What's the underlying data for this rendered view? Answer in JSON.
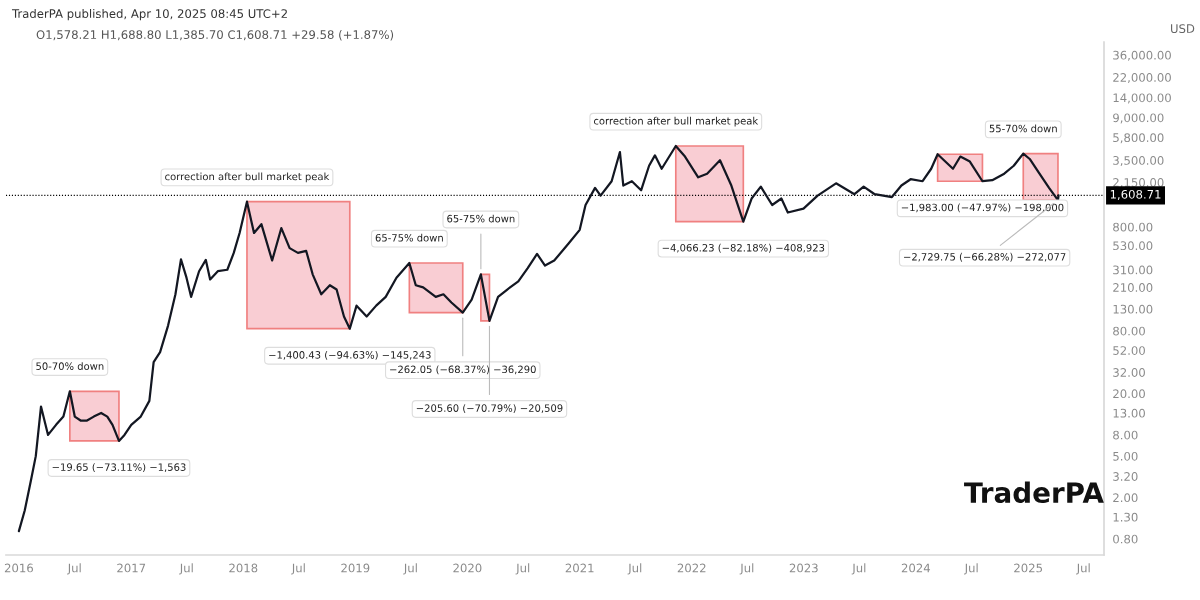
{
  "chart_data": {
    "type": "line",
    "annotations": [
      "TraderPA published, Apr 10, 2025 08:45 UTC+2",
      "O1,578.21 H1,688.80 L1,385.70 C1,608.71 +29.58 (+1.87%)",
      "USD",
      "TraderPA",
      {
        "text": "50-70% down",
        "x": "2016-06-15",
        "y": 21
      },
      {
        "text": "−19.65 (−73.11%) −1,563",
        "x": "2016-11-22",
        "y": 7
      },
      {
        "text": "correction after bull market peak",
        "x": "2018-01-13",
        "y": 1400
      },
      {
        "text": "−1,400.43 (−94.63%) −145,243",
        "x": "2018-12-14",
        "y": 84
      },
      {
        "text": "65-75% down",
        "x": "2019-06-26",
        "y": 360
      },
      {
        "text": "−262.05 (−68.37%) −36,290",
        "x": "2019-12-17",
        "y": 120
      },
      {
        "text": "65-75% down",
        "x": "2020-02-14",
        "y": 280
      },
      {
        "text": "−205.60 (−70.79%) −20,509",
        "x": "2020-03-13",
        "y": 100
      },
      {
        "text": "correction after bull market peak",
        "x": "2021-11-10",
        "y": 4800
      },
      {
        "text": "−4,066.23 (−82.18%) −408,923",
        "x": "2022-06-18",
        "y": 900
      },
      {
        "text": "−1,983.00 (−47.97%) −198,000",
        "x": "2024-08-05",
        "y": 2200
      },
      {
        "text": "55-70% down",
        "x": "2024-12-16",
        "y": 4050
      },
      {
        "text": "−2,729.75 (−66.28%) −272,077",
        "x": "2025-04-08",
        "y": 1450
      }
    ],
    "x": [
      "2016-01-01",
      "2016-01-20",
      "2016-02-10",
      "2016-02-25",
      "2016-03-13",
      "2016-04-05",
      "2016-05-01",
      "2016-05-25",
      "2016-06-15",
      "2016-07-01",
      "2016-07-20",
      "2016-08-10",
      "2016-09-01",
      "2016-09-25",
      "2016-10-15",
      "2016-11-01",
      "2016-11-22",
      "2016-12-10",
      "2017-01-01",
      "2017-02-01",
      "2017-03-01",
      "2017-03-15",
      "2017-04-05",
      "2017-05-01",
      "2017-05-25",
      "2017-06-12",
      "2017-06-30",
      "2017-07-15",
      "2017-08-10",
      "2017-09-01",
      "2017-09-15",
      "2017-10-10",
      "2017-11-10",
      "2017-12-01",
      "2017-12-20",
      "2018-01-13",
      "2018-02-05",
      "2018-03-01",
      "2018-04-05",
      "2018-05-05",
      "2018-06-01",
      "2018-06-28",
      "2018-07-25",
      "2018-08-15",
      "2018-09-12",
      "2018-10-10",
      "2018-11-01",
      "2018-11-25",
      "2018-12-14",
      "2019-01-05",
      "2019-02-07",
      "2019-03-10",
      "2019-04-10",
      "2019-05-15",
      "2019-06-26",
      "2019-07-17",
      "2019-08-10",
      "2019-09-20",
      "2019-10-15",
      "2019-11-10",
      "2019-12-17",
      "2020-01-15",
      "2020-02-14",
      "2020-03-13",
      "2020-04-10",
      "2020-05-10",
      "2020-06-15",
      "2020-07-15",
      "2020-08-15",
      "2020-09-10",
      "2020-10-10",
      "2020-11-25",
      "2021-01-01",
      "2021-01-20",
      "2021-02-20",
      "2021-03-10",
      "2021-04-15",
      "2021-05-12",
      "2021-05-23",
      "2021-06-20",
      "2021-07-20",
      "2021-08-15",
      "2021-09-03",
      "2021-09-25",
      "2021-11-10",
      "2021-12-10",
      "2022-01-22",
      "2022-02-20",
      "2022-04-03",
      "2022-05-10",
      "2022-06-18",
      "2022-07-15",
      "2022-08-14",
      "2022-09-20",
      "2022-10-20",
      "2022-11-10",
      "2022-12-31",
      "2023-02-15",
      "2023-04-16",
      "2023-06-15",
      "2023-07-15",
      "2023-08-20",
      "2023-10-15",
      "2023-11-15",
      "2023-12-15",
      "2024-01-23",
      "2024-02-20",
      "2024-03-12",
      "2024-05-01",
      "2024-05-25",
      "2024-06-25",
      "2024-08-05",
      "2024-09-06",
      "2024-10-15",
      "2024-11-15",
      "2024-12-16",
      "2025-01-06",
      "2025-02-03",
      "2025-03-10",
      "2025-04-08",
      "2025-04-10"
    ],
    "series": [
      {
        "color": "#131722",
        "values": [
          0.95,
          1.5,
          3,
          5,
          15,
          8,
          10,
          12,
          21,
          12,
          11,
          11,
          12,
          13,
          12,
          10,
          7,
          8,
          10,
          12,
          17,
          40,
          50,
          90,
          180,
          390,
          260,
          170,
          300,
          385,
          250,
          300,
          310,
          450,
          700,
          1400,
          700,
          850,
          380,
          780,
          500,
          450,
          470,
          280,
          180,
          220,
          200,
          110,
          84,
          140,
          110,
          140,
          170,
          260,
          360,
          220,
          210,
          170,
          180,
          150,
          120,
          160,
          280,
          100,
          170,
          200,
          240,
          320,
          440,
          340,
          380,
          550,
          750,
          1300,
          1900,
          1600,
          2200,
          4200,
          2000,
          2200,
          1800,
          3100,
          3900,
          2900,
          4800,
          3800,
          2400,
          2600,
          3500,
          2000,
          900,
          1500,
          1950,
          1300,
          1500,
          1100,
          1200,
          1600,
          2100,
          1650,
          1950,
          1650,
          1550,
          2000,
          2300,
          2200,
          2900,
          4000,
          2900,
          3800,
          3400,
          2200,
          2250,
          2600,
          3100,
          4050,
          3600,
          2700,
          1900,
          1450,
          1608.71
        ]
      }
    ],
    "log": true,
    "ylim": [
      0.56,
      48000
    ],
    "yticks": [
      {
        "value": 0.8,
        "label": "0.80"
      },
      {
        "value": 1.3,
        "label": "1.30"
      },
      {
        "value": 2,
        "label": "2.00"
      },
      {
        "value": 3.2,
        "label": "3.20"
      },
      {
        "value": 5,
        "label": "5.00"
      },
      {
        "value": 8,
        "label": "8.00"
      },
      {
        "value": 13,
        "label": "13.00"
      },
      {
        "value": 20,
        "label": "20.00"
      },
      {
        "value": 32,
        "label": "32.00"
      },
      {
        "value": 52,
        "label": "52.00"
      },
      {
        "value": 80,
        "label": "80.00"
      },
      {
        "value": 130,
        "label": "130.00"
      },
      {
        "value": 210,
        "label": "210.00"
      },
      {
        "value": 310,
        "label": "310.00"
      },
      {
        "value": 530,
        "label": "530.00"
      },
      {
        "value": 800,
        "label": "800.00"
      },
      {
        "value": 2150,
        "label": "2,150.00"
      },
      {
        "value": 3500,
        "label": "3,500.00"
      },
      {
        "value": 5800,
        "label": "5,800.00"
      },
      {
        "value": 9000,
        "label": "9,000.00"
      },
      {
        "value": 14000,
        "label": "14,000.00"
      },
      {
        "value": 22000,
        "label": "22,000.00"
      },
      {
        "value": 36000,
        "label": "36,000.00"
      }
    ],
    "xlim": [
      "2015-11-20",
      "2025-09-05"
    ],
    "xticks": [
      {
        "value": "2016-01-01",
        "label": "2016"
      },
      {
        "value": "2016-07-01",
        "label": "Jul"
      },
      {
        "value": "2017-01-01",
        "label": "2017"
      },
      {
        "value": "2017-07-01",
        "label": "Jul"
      },
      {
        "value": "2018-01-01",
        "label": "2018"
      },
      {
        "value": "2018-07-01",
        "label": "Jul"
      },
      {
        "value": "2019-01-01",
        "label": "2019"
      },
      {
        "value": "2019-07-01",
        "label": "Jul"
      },
      {
        "value": "2020-01-01",
        "label": "2020"
      },
      {
        "value": "2020-07-01",
        "label": "Jul"
      },
      {
        "value": "2021-01-01",
        "label": "2021"
      },
      {
        "value": "2021-07-01",
        "label": "Jul"
      },
      {
        "value": "2022-01-01",
        "label": "2022"
      },
      {
        "value": "2022-07-01",
        "label": "Jul"
      },
      {
        "value": "2023-01-01",
        "label": "2023"
      },
      {
        "value": "2023-07-01",
        "label": "Jul"
      },
      {
        "value": "2024-01-01",
        "label": "2024"
      },
      {
        "value": "2024-07-01",
        "label": "Jul"
      },
      {
        "value": "2025-01-01",
        "label": "2025"
      },
      {
        "value": "2025-07-01",
        "label": "Jul"
      }
    ],
    "bands": [
      {
        "axis": "x",
        "from": "2016-06-15",
        "to": "2016-11-22",
        "color": "#f9cdd3"
      },
      {
        "axis": "x",
        "from": "2018-01-13",
        "to": "2018-12-14",
        "color": "#f9cdd3"
      },
      {
        "axis": "x",
        "from": "2019-06-26",
        "to": "2019-12-17",
        "color": "#f9cdd3"
      },
      {
        "axis": "x",
        "from": "2020-02-14",
        "to": "2020-03-13",
        "color": "#f9cdd3"
      },
      {
        "axis": "x",
        "from": "2021-11-10",
        "to": "2022-06-18",
        "color": "#f9cdd3"
      },
      {
        "axis": "x",
        "from": "2024-03-12",
        "to": "2024-08-05",
        "color": "#f9cdd3"
      },
      {
        "axis": "x",
        "from": "2024-12-16",
        "to": "2025-04-08",
        "color": "#f9cdd3"
      }
    ],
    "ref_lines": [
      {
        "axis": "y",
        "value": 1608.71,
        "label": "1,608.71",
        "color": "#000000",
        "line_style": "dotted"
      }
    ],
    "grid": false,
    "line_style": "solid",
    "marker": "none"
  }
}
